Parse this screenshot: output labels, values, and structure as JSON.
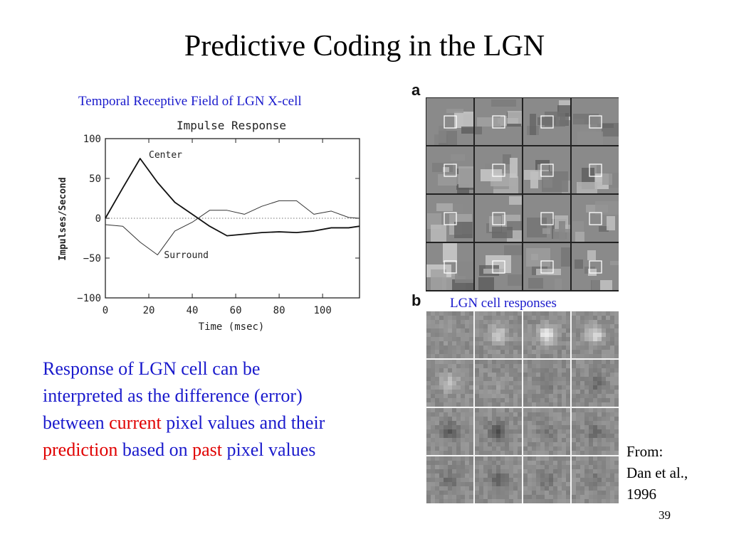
{
  "slide": {
    "title": "Predictive Coding in the LGN",
    "page_number": "39"
  },
  "figure_left": {
    "caption": "Temporal Receptive Field of LGN X-cell"
  },
  "chart_data": {
    "type": "line",
    "title": "Impulse Response",
    "xlabel": "Time (msec)",
    "ylabel": "Impulses/Second",
    "xlim": [
      0,
      117
    ],
    "ylim": [
      -100,
      100
    ],
    "xticks": [
      "0",
      "20",
      "40",
      "60",
      "80",
      "100"
    ],
    "yticks": [
      "100",
      "50",
      "0",
      "−50",
      "−100"
    ],
    "zero_line": "dotted",
    "series": [
      {
        "name": "Center",
        "x": [
          0,
          8,
          16,
          24,
          32,
          40,
          48,
          56,
          64,
          72,
          80,
          88,
          96,
          104,
          112,
          117
        ],
        "y": [
          0,
          38,
          75,
          45,
          20,
          5,
          -10,
          -22,
          -20,
          -18,
          -17,
          -18,
          -16,
          -12,
          -12,
          -10
        ]
      },
      {
        "name": "Surround",
        "x": [
          0,
          8,
          16,
          24,
          32,
          40,
          48,
          56,
          64,
          72,
          80,
          88,
          96,
          104,
          112,
          117
        ],
        "y": [
          -8,
          -10,
          -30,
          -46,
          -16,
          -5,
          10,
          10,
          5,
          15,
          22,
          22,
          5,
          9,
          1,
          0
        ]
      }
    ]
  },
  "figure_right": {
    "panel_a_label": "a",
    "panel_b_label": "b",
    "panel_b_caption": "LGN cell responses"
  },
  "body": {
    "line1": "Response of LGN cell can be",
    "line2": "interpreted as the difference (error)",
    "line3_pre": "between ",
    "line3_hl": "current",
    "line3_post": " pixel values and their",
    "line4_hl1": "prediction",
    "line4_mid": " based on ",
    "line4_hl2": "past",
    "line4_post": " pixel values"
  },
  "credit": {
    "line1": "From:",
    "line2": "Dan et al.,",
    "line3": "1996"
  }
}
